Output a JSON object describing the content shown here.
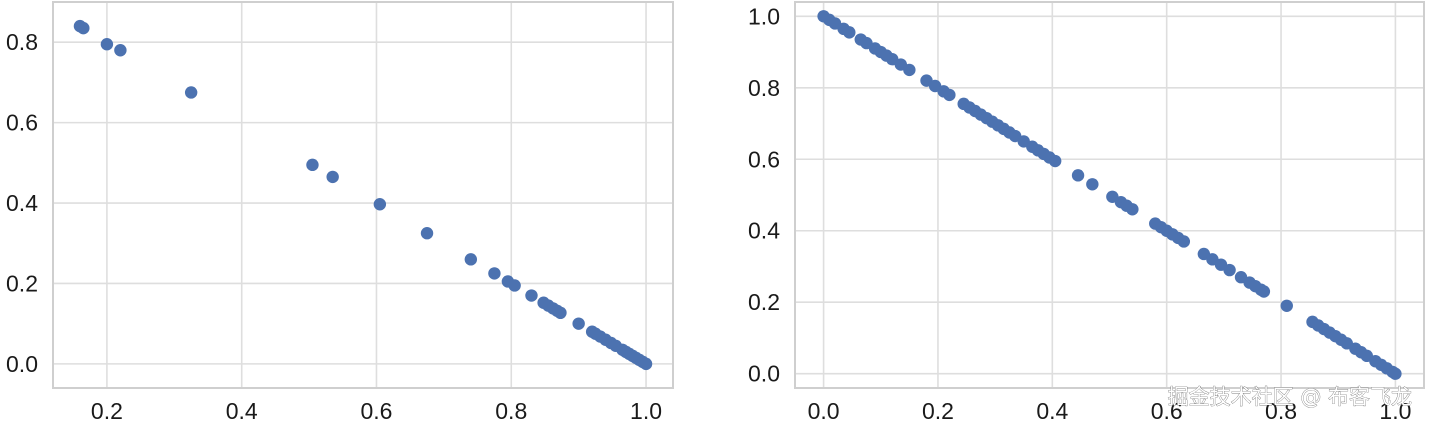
{
  "chart_data": [
    {
      "type": "scatter",
      "xlim": [
        0.12,
        1.04
      ],
      "ylim": [
        -0.06,
        0.9
      ],
      "xticks": [
        0.2,
        0.4,
        0.6,
        0.8,
        1.0
      ],
      "xtick_labels": [
        "0.2",
        "0.4",
        "0.6",
        "0.8",
        "1.0"
      ],
      "yticks": [
        0.0,
        0.2,
        0.4,
        0.6,
        0.8
      ],
      "ytick_labels": [
        "0.0",
        "0.2",
        "0.4",
        "0.6",
        "0.8"
      ],
      "grid": true,
      "marker_color": "#4c72b0",
      "points": [
        [
          0.16,
          0.84
        ],
        [
          0.165,
          0.835
        ],
        [
          0.2,
          0.795
        ],
        [
          0.22,
          0.78
        ],
        [
          0.325,
          0.675
        ],
        [
          0.505,
          0.495
        ],
        [
          0.535,
          0.465
        ],
        [
          0.605,
          0.397
        ],
        [
          0.675,
          0.325
        ],
        [
          0.74,
          0.26
        ],
        [
          0.775,
          0.225
        ],
        [
          0.795,
          0.205
        ],
        [
          0.805,
          0.195
        ],
        [
          0.83,
          0.17
        ],
        [
          0.848,
          0.152
        ],
        [
          0.855,
          0.145
        ],
        [
          0.862,
          0.138
        ],
        [
          0.868,
          0.132
        ],
        [
          0.873,
          0.127
        ],
        [
          0.9,
          0.1
        ],
        [
          0.92,
          0.08
        ],
        [
          0.925,
          0.075
        ],
        [
          0.932,
          0.068
        ],
        [
          0.94,
          0.06
        ],
        [
          0.948,
          0.052
        ],
        [
          0.955,
          0.045
        ],
        [
          0.965,
          0.035
        ],
        [
          0.97,
          0.03
        ],
        [
          0.975,
          0.025
        ],
        [
          0.98,
          0.02
        ],
        [
          0.985,
          0.015
        ],
        [
          0.99,
          0.01
        ],
        [
          0.995,
          0.005
        ],
        [
          1.0,
          0.0
        ]
      ]
    },
    {
      "type": "scatter",
      "xlim": [
        -0.05,
        1.05
      ],
      "ylim": [
        -0.04,
        1.04
      ],
      "xticks": [
        0.0,
        0.2,
        0.4,
        0.6,
        0.8,
        1.0
      ],
      "xtick_labels": [
        "0.0",
        "0.2",
        "0.4",
        "0.6",
        "0.8",
        "1.0"
      ],
      "yticks": [
        0.0,
        0.2,
        0.4,
        0.6,
        0.8,
        1.0
      ],
      "ytick_labels": [
        "0.0",
        "0.2",
        "0.4",
        "0.6",
        "0.8",
        "1.0"
      ],
      "grid": true,
      "marker_color": "#4c72b0",
      "points": [
        [
          0.0,
          1.0
        ],
        [
          0.01,
          0.99
        ],
        [
          0.02,
          0.98
        ],
        [
          0.035,
          0.965
        ],
        [
          0.045,
          0.955
        ],
        [
          0.065,
          0.935
        ],
        [
          0.075,
          0.925
        ],
        [
          0.09,
          0.91
        ],
        [
          0.1,
          0.9
        ],
        [
          0.11,
          0.89
        ],
        [
          0.12,
          0.88
        ],
        [
          0.135,
          0.865
        ],
        [
          0.15,
          0.85
        ],
        [
          0.18,
          0.82
        ],
        [
          0.195,
          0.805
        ],
        [
          0.21,
          0.79
        ],
        [
          0.22,
          0.78
        ],
        [
          0.245,
          0.755
        ],
        [
          0.255,
          0.745
        ],
        [
          0.265,
          0.735
        ],
        [
          0.275,
          0.725
        ],
        [
          0.285,
          0.715
        ],
        [
          0.295,
          0.705
        ],
        [
          0.305,
          0.695
        ],
        [
          0.315,
          0.685
        ],
        [
          0.325,
          0.675
        ],
        [
          0.335,
          0.665
        ],
        [
          0.35,
          0.65
        ],
        [
          0.365,
          0.635
        ],
        [
          0.375,
          0.625
        ],
        [
          0.385,
          0.615
        ],
        [
          0.395,
          0.605
        ],
        [
          0.405,
          0.595
        ],
        [
          0.445,
          0.555
        ],
        [
          0.47,
          0.53
        ],
        [
          0.505,
          0.495
        ],
        [
          0.52,
          0.48
        ],
        [
          0.53,
          0.47
        ],
        [
          0.54,
          0.46
        ],
        [
          0.58,
          0.42
        ],
        [
          0.59,
          0.41
        ],
        [
          0.6,
          0.4
        ],
        [
          0.61,
          0.39
        ],
        [
          0.62,
          0.38
        ],
        [
          0.63,
          0.37
        ],
        [
          0.665,
          0.335
        ],
        [
          0.68,
          0.32
        ],
        [
          0.695,
          0.305
        ],
        [
          0.71,
          0.29
        ],
        [
          0.73,
          0.27
        ],
        [
          0.745,
          0.255
        ],
        [
          0.755,
          0.245
        ],
        [
          0.765,
          0.235
        ],
        [
          0.77,
          0.23
        ],
        [
          0.81,
          0.19
        ],
        [
          0.855,
          0.145
        ],
        [
          0.865,
          0.135
        ],
        [
          0.875,
          0.125
        ],
        [
          0.885,
          0.115
        ],
        [
          0.895,
          0.105
        ],
        [
          0.905,
          0.095
        ],
        [
          0.915,
          0.085
        ],
        [
          0.93,
          0.07
        ],
        [
          0.94,
          0.06
        ],
        [
          0.95,
          0.05
        ],
        [
          0.965,
          0.035
        ],
        [
          0.975,
          0.025
        ],
        [
          0.985,
          0.015
        ],
        [
          0.995,
          0.005
        ],
        [
          1.0,
          0.0
        ]
      ]
    }
  ],
  "watermark": {
    "text": "掘金技术社区 @ 布客飞龙"
  }
}
